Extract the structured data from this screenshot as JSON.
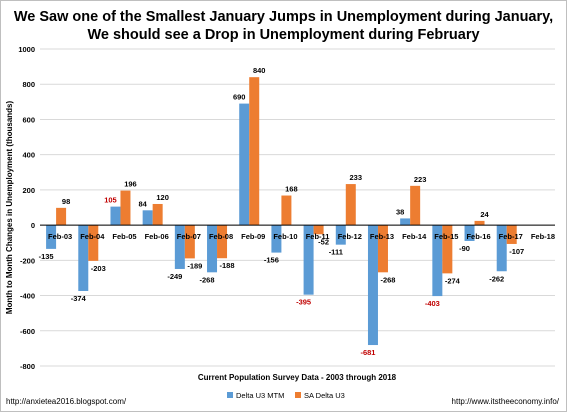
{
  "title_line1": "We Saw one of the Smallest January  Jumps in Unemployment during January,",
  "title_line2": "We should see a Drop in Unemployment during February",
  "footer": {
    "left_url": "http://anxietea2016.blogspot.com/",
    "right_url": "http://www.itstheeconomy.info/"
  },
  "colors": {
    "series1": "#5b9bd5",
    "series2": "#ed7d31",
    "highlight_label": "#c00000",
    "grid": "#d9d9d9",
    "axis": "#000000"
  },
  "chart_data": {
    "type": "bar",
    "title": "We Saw one of the Smallest January  Jumps in Unemployment during January, We should see a Drop in Unemployment during February",
    "xlabel": "Current Population Survey Data - 2003 through 2018",
    "ylabel": "Month to Month Changes in Unemployment (thousands)",
    "ylim": [
      -800,
      1000
    ],
    "yticks": [
      -800,
      -600,
      -400,
      -200,
      0,
      200,
      400,
      600,
      800,
      1000
    ],
    "grid": true,
    "legend_position": "bottom",
    "categories": [
      "Feb-03",
      "Feb-04",
      "Feb-05",
      "Feb-06",
      "Feb-07",
      "Feb-08",
      "Feb-09",
      "Feb-10",
      "Feb-11",
      "Feb-12",
      "Feb-13",
      "Feb-14",
      "Feb-15",
      "Feb-16",
      "Feb-17",
      "Feb-18"
    ],
    "series": [
      {
        "name": "Delta U3 MTM",
        "values": [
          -135,
          -374,
          105,
          84,
          -249,
          -268,
          690,
          -156,
          -395,
          -111,
          -681,
          38,
          -403,
          -90,
          -262,
          null
        ],
        "highlighted": [
          false,
          false,
          true,
          false,
          false,
          false,
          false,
          false,
          true,
          false,
          true,
          false,
          true,
          false,
          false,
          false
        ]
      },
      {
        "name": "SA Delta U3",
        "values": [
          98,
          -203,
          196,
          120,
          -189,
          -188,
          840,
          168,
          -52,
          233,
          -268,
          223,
          -274,
          24,
          -107,
          null
        ]
      }
    ]
  }
}
